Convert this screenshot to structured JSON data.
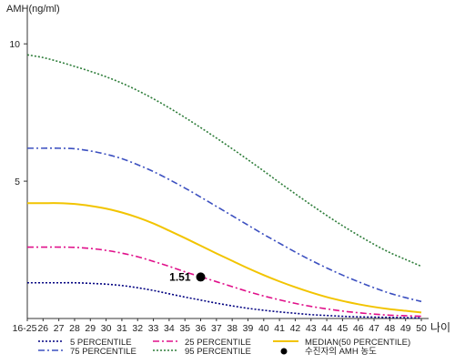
{
  "chart_data": {
    "type": "line",
    "ylabel": "AMH(ng/ml)",
    "xlabel": "나이",
    "x": [
      "16-25",
      "26",
      "27",
      "28",
      "29",
      "30",
      "31",
      "32",
      "33",
      "34",
      "35",
      "36",
      "37",
      "38",
      "39",
      "40",
      "41",
      "42",
      "43",
      "44",
      "45",
      "46",
      "47",
      "48",
      "49",
      "50"
    ],
    "ylim": [
      0,
      11
    ],
    "yticks": [
      5,
      10
    ],
    "grid": false,
    "legend_position": "bottom",
    "series": [
      {
        "name": "5 PERCENTILE",
        "color": "#000080",
        "dash": "2,2",
        "values": [
          1.3,
          1.3,
          1.3,
          1.3,
          1.28,
          1.25,
          1.2,
          1.12,
          1.02,
          0.9,
          0.78,
          0.67,
          0.56,
          0.46,
          0.37,
          0.3,
          0.24,
          0.19,
          0.14,
          0.11,
          0.08,
          0.06,
          0.05,
          0.04,
          0.03,
          0.02
        ]
      },
      {
        "name": "25 PERCENTILE",
        "color": "#e0108a",
        "dash": "7,3,2,3",
        "values": [
          2.6,
          2.6,
          2.6,
          2.59,
          2.55,
          2.48,
          2.38,
          2.25,
          2.08,
          1.9,
          1.7,
          1.52,
          1.34,
          1.16,
          0.98,
          0.82,
          0.68,
          0.55,
          0.44,
          0.35,
          0.27,
          0.21,
          0.16,
          0.12,
          0.1,
          0.08
        ]
      },
      {
        "name": "MEDIAN(50 PERCENTILE)",
        "color": "#f2c400",
        "dash": "",
        "values": [
          4.2,
          4.2,
          4.2,
          4.17,
          4.1,
          4.0,
          3.86,
          3.68,
          3.46,
          3.2,
          2.93,
          2.65,
          2.37,
          2.1,
          1.83,
          1.58,
          1.35,
          1.14,
          0.95,
          0.78,
          0.64,
          0.52,
          0.42,
          0.34,
          0.28,
          0.22
        ]
      },
      {
        "name": "75 PERCENTILE",
        "color": "#3c50c0",
        "dash": "7,3,2,3",
        "values": [
          6.2,
          6.2,
          6.2,
          6.18,
          6.1,
          5.98,
          5.82,
          5.6,
          5.35,
          5.06,
          4.75,
          4.42,
          4.08,
          3.74,
          3.4,
          3.06,
          2.74,
          2.42,
          2.12,
          1.84,
          1.58,
          1.34,
          1.12,
          0.92,
          0.76,
          0.62
        ]
      },
      {
        "name": "95 PERCENTILE",
        "color": "#2e7d3a",
        "dash": "2,2",
        "values": [
          9.6,
          9.5,
          9.35,
          9.18,
          9.0,
          8.8,
          8.57,
          8.3,
          8.0,
          7.67,
          7.32,
          6.95,
          6.57,
          6.18,
          5.78,
          5.37,
          4.95,
          4.54,
          4.14,
          3.75,
          3.38,
          3.03,
          2.7,
          2.4,
          2.15,
          1.9
        ]
      }
    ],
    "points": [
      {
        "name": "수진자의 AMH 농도",
        "x": "36",
        "y": 1.51,
        "label": "1.51",
        "color": "#000000"
      }
    ]
  }
}
